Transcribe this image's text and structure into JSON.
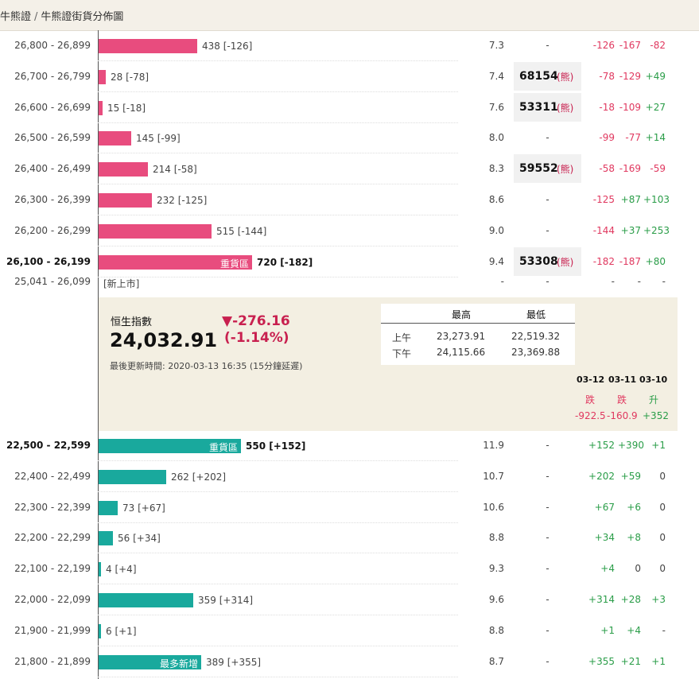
{
  "breadcrumb": [
    "牛熊證",
    "牛熊證街貨分佈圖"
  ],
  "colors": {
    "bull": "#e84c7e",
    "bear": "#19a99d",
    "negative": "#e0385f",
    "positive": "#2a9d48",
    "panel": "#f3efe2"
  },
  "bull_rows": [
    {
      "range": "26,800 - 26,899",
      "bar_value": "438 [-126]",
      "bar_fraction": 0.2755,
      "ratio": "7.3",
      "code": "-",
      "code_mark": "",
      "chg": [
        "-126",
        "-167",
        "-82"
      ]
    },
    {
      "range": "26,700 - 26,799",
      "bar_value": "28 [-78]",
      "bar_fraction": 0.0204,
      "ratio": "7.4",
      "code": "68154",
      "code_mark": "(熊)",
      "chg": [
        "-78",
        "-129",
        "+49"
      ]
    },
    {
      "range": "26,600 - 26,699",
      "bar_value": "15 [-18]",
      "bar_fraction": 0.0102,
      "ratio": "7.6",
      "code": "53311",
      "code_mark": "(熊)",
      "chg": [
        "-18",
        "-109",
        "+27"
      ]
    },
    {
      "range": "26,500 - 26,599",
      "bar_value": "145 [-99]",
      "bar_fraction": 0.0918,
      "ratio": "8.0",
      "code": "-",
      "code_mark": "",
      "chg": [
        "-99",
        "-77",
        "+14"
      ]
    },
    {
      "range": "26,400 - 26,499",
      "bar_value": "214 [-58]",
      "bar_fraction": 0.1378,
      "ratio": "8.3",
      "code": "59552",
      "code_mark": "(熊)",
      "chg": [
        "-58",
        "-169",
        "-59"
      ]
    },
    {
      "range": "26,300 - 26,399",
      "bar_value": "232 [-125]",
      "bar_fraction": 0.148,
      "ratio": "8.6",
      "code": "-",
      "code_mark": "",
      "chg": [
        "-125",
        "+87",
        "+103"
      ]
    },
    {
      "range": "26,200 - 26,299",
      "bar_value": "515 [-144]",
      "bar_fraction": 0.3163,
      "ratio": "9.0",
      "code": "-",
      "code_mark": "",
      "chg": [
        "-144",
        "+37",
        "+253"
      ]
    },
    {
      "range": "26,100 - 26,199",
      "bar_value": "720 [-182]",
      "bar_fraction": 0.4286,
      "bar_tag": "重貨區",
      "bold": true,
      "ratio": "9.4",
      "code": "53308",
      "code_mark": "(熊)",
      "chg": [
        "-182",
        "-187",
        "+80"
      ]
    }
  ],
  "new_row": {
    "range": "25,041 - 26,099",
    "label": "[新上市]",
    "ratio": "-",
    "code": "-",
    "chg": [
      "-",
      "-",
      "-"
    ]
  },
  "index_panel": {
    "name": "恒生指數",
    "value": "24,032.91",
    "change": "▼-276.16",
    "change_pct": "(-1.14%)",
    "updated": "最後更新時間: 2020-03-13 16:35 (15分鐘延遲)",
    "high_label": "最高",
    "low_label": "最低",
    "sessions": [
      {
        "label": "上午",
        "high": "23,273.91",
        "low": "22,519.32"
      },
      {
        "label": "下午",
        "high": "24,115.66",
        "low": "23,369.88"
      }
    ],
    "dates": [
      "03-12",
      "03-11",
      "03-10"
    ],
    "directions": [
      "跌",
      "跌",
      "升"
    ],
    "changes": [
      "-922.5",
      "-160.9",
      "+352"
    ]
  },
  "bear_rows": [
    {
      "range": "22,500 - 22,599",
      "bar_value": "550 [+152]",
      "bar_fraction": 0.398,
      "bar_tag": "重貨區",
      "bold": true,
      "ratio": "11.9",
      "code": "-",
      "chg": [
        "+152",
        "+390",
        "+1"
      ]
    },
    {
      "range": "22,400 - 22,499",
      "bar_value": "262 [+202]",
      "bar_fraction": 0.1888,
      "ratio": "10.7",
      "code": "-",
      "chg": [
        "+202",
        "+59",
        "0"
      ]
    },
    {
      "range": "22,300 - 22,399",
      "bar_value": "73 [+67]",
      "bar_fraction": 0.0541,
      "ratio": "10.6",
      "code": "-",
      "chg": [
        "+67",
        "+6",
        "0"
      ]
    },
    {
      "range": "22,200 - 22,299",
      "bar_value": "56 [+34]",
      "bar_fraction": 0.0408,
      "ratio": "8.8",
      "code": "-",
      "chg": [
        "+34",
        "+8",
        "0"
      ]
    },
    {
      "range": "22,100 - 22,199",
      "bar_value": "4 [+4]",
      "bar_fraction": 0.0031,
      "ratio": "9.3",
      "code": "-",
      "chg": [
        "+4",
        "0",
        "0"
      ]
    },
    {
      "range": "22,000 - 22,099",
      "bar_value": "359 [+314]",
      "bar_fraction": 0.2653,
      "ratio": "9.6",
      "code": "-",
      "chg": [
        "+314",
        "+28",
        "+3"
      ]
    },
    {
      "range": "21,900 - 21,999",
      "bar_value": "6 [+1]",
      "bar_fraction": 0.0051,
      "ratio": "8.8",
      "code": "-",
      "chg": [
        "+1",
        "+4",
        "-"
      ]
    },
    {
      "range": "21,800 - 21,899",
      "bar_value": "389 [+355]",
      "bar_fraction": 0.2857,
      "bar_tag": "最多新增",
      "ratio": "8.7",
      "code": "-",
      "chg": [
        "+355",
        "+21",
        "+1"
      ]
    }
  ]
}
